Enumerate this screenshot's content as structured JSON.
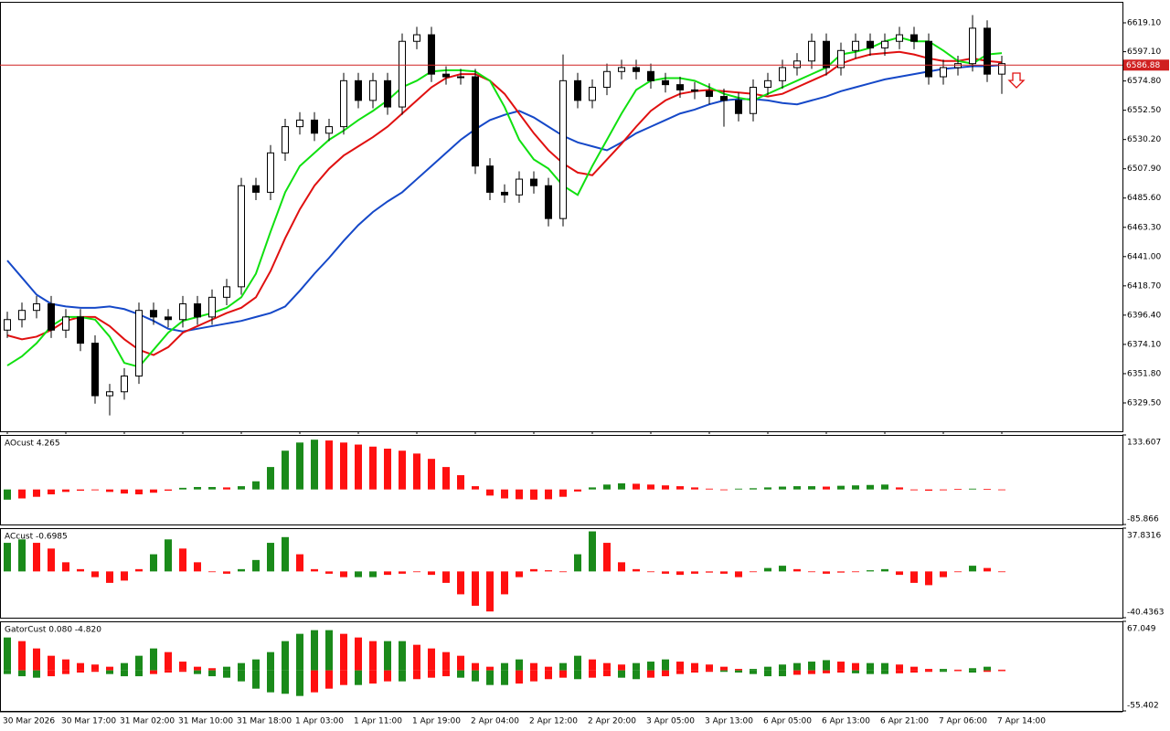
{
  "chart_data": [
    {
      "type": "candlestick",
      "x_labels": [
        "30 Mar 2026",
        "30 Mar 17:00",
        "31 Mar 02:00",
        "31 Mar 10:00",
        "31 Mar 18:00",
        "1 Apr 03:00",
        "1 Apr 11:00",
        "1 Apr 19:00",
        "2 Apr 04:00",
        "2 Apr 12:00",
        "2 Apr 20:00",
        "3 Apr 05:00",
        "3 Apr 13:00",
        "6 Apr 05:00",
        "6 Apr 13:00",
        "6 Apr 21:00",
        "7 Apr 06:00",
        "7 Apr 14:00"
      ],
      "open": [
        6385,
        6393,
        6400,
        6405,
        6385,
        6395,
        6375,
        6335,
        6338,
        6350,
        6400,
        6395,
        6393,
        6405,
        6395,
        6410,
        6418,
        6495,
        6490,
        6520,
        6540,
        6545,
        6535,
        6540,
        6575,
        6560,
        6575,
        6555,
        6605,
        6610,
        6580,
        6578,
        6578,
        6510,
        6490,
        6488,
        6500,
        6495,
        6470,
        6575,
        6560,
        6570,
        6582,
        6585,
        6582,
        6575,
        6572,
        6568,
        6567,
        6563,
        6560,
        6550,
        6570,
        6575,
        6585,
        6590,
        6605,
        6585,
        6598,
        6605,
        6600,
        6605,
        6610,
        6605,
        6578,
        6585,
        6588,
        6615,
        6580
      ],
      "high": [
        6399,
        6406,
        6411,
        6411,
        6401,
        6401,
        6381,
        6344,
        6356,
        6406,
        6406,
        6401,
        6411,
        6411,
        6416,
        6424,
        6501,
        6501,
        6526,
        6546,
        6551,
        6551,
        6546,
        6581,
        6581,
        6581,
        6581,
        6611,
        6616,
        6616,
        6586,
        6584,
        6584,
        6516,
        6496,
        6506,
        6506,
        6501,
        6595,
        6581,
        6576,
        6588,
        6591,
        6591,
        6588,
        6581,
        6578,
        6574,
        6573,
        6569,
        6566,
        6576,
        6581,
        6591,
        6596,
        6611,
        6611,
        6604,
        6611,
        6611,
        6611,
        6616,
        6616,
        6611,
        6591,
        6594,
        6625,
        6621,
        6594
      ],
      "low": [
        6379,
        6387,
        6394,
        6379,
        6379,
        6369,
        6329,
        6320,
        6332,
        6344,
        6389,
        6387,
        6387,
        6389,
        6389,
        6404,
        6412,
        6484,
        6484,
        6514,
        6534,
        6529,
        6529,
        6534,
        6554,
        6554,
        6549,
        6549,
        6599,
        6574,
        6572,
        6572,
        6504,
        6484,
        6482,
        6482,
        6489,
        6464,
        6464,
        6554,
        6554,
        6564,
        6576,
        6576,
        6569,
        6566,
        6562,
        6561,
        6557,
        6540,
        6544,
        6544,
        6564,
        6569,
        6579,
        6584,
        6579,
        6579,
        6592,
        6594,
        6594,
        6599,
        6599,
        6572,
        6572,
        6579,
        6582,
        6574,
        6565
      ],
      "close": [
        6393,
        6400,
        6405,
        6385,
        6395,
        6375,
        6335,
        6338,
        6350,
        6400,
        6395,
        6393,
        6405,
        6395,
        6410,
        6418,
        6495,
        6490,
        6520,
        6540,
        6545,
        6535,
        6540,
        6575,
        6560,
        6575,
        6555,
        6605,
        6610,
        6580,
        6578,
        6578,
        6510,
        6490,
        6488,
        6500,
        6495,
        6470,
        6575,
        6560,
        6570,
        6582,
        6585,
        6582,
        6575,
        6572,
        6568,
        6567,
        6563,
        6560,
        6550,
        6570,
        6575,
        6585,
        6590,
        6605,
        6585,
        6598,
        6605,
        6600,
        6605,
        6610,
        6605,
        6578,
        6585,
        6588,
        6615,
        6580,
        6588
      ],
      "series": [
        {
          "color": "#1548c8",
          "values": [
            6438,
            6425,
            6412,
            6405,
            6403,
            6402,
            6402,
            6403,
            6401,
            6397,
            6392,
            6386,
            6384,
            6386,
            6388,
            6390,
            6392,
            6395,
            6398,
            6403,
            6415,
            6428,
            6440,
            6453,
            6465,
            6475,
            6483,
            6490,
            6500,
            6510,
            6520,
            6530,
            6538,
            6545,
            6549,
            6552,
            6547,
            6540,
            6533,
            6528,
            6525,
            6522,
            6528,
            6535,
            6540,
            6545,
            6550,
            6553,
            6557,
            6560,
            6561,
            6561,
            6560,
            6558,
            6557,
            6560,
            6563,
            6567,
            6570,
            6573,
            6576,
            6578,
            6580,
            6582,
            6584,
            6585,
            6586,
            6586,
            6587
          ]
        },
        {
          "color": "#e01010",
          "values": [
            6381,
            6378,
            6380,
            6385,
            6392,
            6395,
            6395,
            6388,
            6378,
            6370,
            6366,
            6372,
            6383,
            6388,
            6393,
            6398,
            6402,
            6410,
            6430,
            6455,
            6477,
            6495,
            6508,
            6518,
            6525,
            6532,
            6540,
            6550,
            6560,
            6570,
            6577,
            6580,
            6580,
            6575,
            6565,
            6550,
            6535,
            6522,
            6512,
            6505,
            6503,
            6515,
            6527,
            6540,
            6552,
            6560,
            6565,
            6567,
            6568,
            6567,
            6566,
            6565,
            6563,
            6565,
            6570,
            6575,
            6580,
            6588,
            6592,
            6595,
            6596,
            6597,
            6595,
            6592,
            6590,
            6590,
            6592,
            6590,
            6589
          ]
        },
        {
          "color": "#10e010",
          "values": [
            6358,
            6365,
            6375,
            6388,
            6395,
            6395,
            6393,
            6380,
            6360,
            6357,
            6370,
            6383,
            6392,
            6395,
            6398,
            6402,
            6410,
            6428,
            6460,
            6490,
            6510,
            6520,
            6530,
            6537,
            6545,
            6552,
            6560,
            6570,
            6575,
            6582,
            6583,
            6583,
            6582,
            6575,
            6555,
            6530,
            6515,
            6508,
            6495,
            6488,
            6510,
            6530,
            6550,
            6568,
            6575,
            6577,
            6577,
            6575,
            6570,
            6565,
            6562,
            6560,
            6565,
            6570,
            6575,
            6580,
            6585,
            6595,
            6597,
            6600,
            6605,
            6608,
            6605,
            6605,
            6598,
            6590,
            6588,
            6595,
            6596
          ]
        }
      ],
      "last_price": 6586.88,
      "up_color": "#ffffff",
      "down_color": "#000000",
      "ylim": [
        6307.9,
        6635.1
      ],
      "yticks": [
        {
          "value": 6619.1,
          "label": "6619.10"
        },
        {
          "value": 6597.1,
          "label": "6597.10"
        },
        {
          "value": 6574.8,
          "label": "6574.80"
        },
        {
          "value": 6552.5,
          "label": "6552.50"
        },
        {
          "value": 6530.2,
          "label": "6530.20"
        },
        {
          "value": 6507.9,
          "label": "6507.90"
        },
        {
          "value": 6485.6,
          "label": "6485.60"
        },
        {
          "value": 6463.3,
          "label": "6463.30"
        },
        {
          "value": 6441.0,
          "label": "6441.00"
        },
        {
          "value": 6418.7,
          "label": "6418.70"
        },
        {
          "value": 6396.4,
          "label": "6396.40"
        },
        {
          "value": 6374.1,
          "label": "6374.10"
        },
        {
          "value": 6351.8,
          "label": "6351.80"
        },
        {
          "value": 6329.5,
          "label": "6329.50"
        }
      ]
    },
    {
      "type": "bar",
      "title": "AOcust 4.265",
      "up_color": "#1a8a1a",
      "down_color": "#ff1010",
      "values": [
        -25,
        -22,
        -18,
        -12,
        -6,
        -3,
        -2,
        -6,
        -10,
        -12,
        -8,
        -3,
        4,
        6,
        6,
        5,
        8,
        20,
        55,
        95,
        115,
        122,
        120,
        115,
        110,
        105,
        100,
        95,
        88,
        75,
        55,
        35,
        8,
        -15,
        -22,
        -24,
        -25,
        -24,
        -18,
        -5,
        5,
        12,
        15,
        14,
        12,
        10,
        8,
        5,
        2,
        0,
        2,
        3,
        5,
        7,
        8,
        8,
        7,
        9,
        10,
        11,
        12,
        5,
        -2,
        -3,
        -2,
        1,
        2,
        1,
        0
      ],
      "ylim": [
        -85.866,
        133.607
      ],
      "yticks": [
        133.607,
        -85.866
      ]
    },
    {
      "type": "bar",
      "title": "ACcust -0.6985",
      "up_color": "#1a8a1a",
      "down_color": "#ff1010",
      "values": [
        25,
        28,
        25,
        20,
        8,
        2,
        -5,
        -10,
        -8,
        2,
        15,
        28,
        20,
        8,
        0,
        -2,
        2,
        10,
        25,
        30,
        15,
        2,
        -2,
        -5,
        -5,
        -5,
        -3,
        -2,
        0,
        -3,
        -10,
        -20,
        -30,
        -35,
        -20,
        -5,
        2,
        1,
        0,
        15,
        35,
        25,
        8,
        2,
        0,
        -2,
        -3,
        -2,
        -1,
        -2,
        -5,
        0,
        3,
        5,
        2,
        0,
        -2,
        -1,
        0,
        1,
        2,
        -3,
        -10,
        -12,
        -5,
        0,
        5,
        3,
        0
      ],
      "ylim": [
        -40.4363,
        37.8316
      ],
      "yticks": [
        37.8316,
        -40.4363
      ]
    },
    {
      "type": "gator",
      "title": "GatorCust 0.080 -4.820",
      "up_color": "#1a8a1a",
      "down_color": "#ff1010",
      "series": [
        {
          "values": [
            45,
            40,
            30,
            20,
            15,
            10,
            8,
            5,
            10,
            20,
            30,
            25,
            12,
            5,
            3,
            5,
            10,
            15,
            25,
            40,
            50,
            55,
            55,
            50,
            45,
            40,
            40,
            40,
            35,
            30,
            25,
            20,
            10,
            5,
            10,
            15,
            10,
            5,
            10,
            20,
            15,
            10,
            8,
            10,
            12,
            15,
            12,
            10,
            8,
            5,
            2,
            2,
            5,
            8,
            10,
            12,
            14,
            12,
            10,
            10,
            10,
            8,
            5,
            2,
            2,
            1,
            3,
            5,
            1
          ]
        },
        {
          "values": [
            -5,
            -8,
            -10,
            -8,
            -5,
            -3,
            -2,
            -5,
            -8,
            -8,
            -5,
            -3,
            -2,
            -5,
            -8,
            -10,
            -15,
            -25,
            -30,
            -32,
            -35,
            -30,
            -25,
            -20,
            -20,
            -18,
            -15,
            -15,
            -12,
            -10,
            -8,
            -10,
            -15,
            -20,
            -20,
            -18,
            -15,
            -12,
            -10,
            -12,
            -10,
            -8,
            -10,
            -12,
            -10,
            -8,
            -5,
            -3,
            -2,
            -2,
            -3,
            -5,
            -8,
            -8,
            -6,
            -5,
            -4,
            -3,
            -4,
            -5,
            -5,
            -4,
            -3,
            -2,
            -2,
            -1,
            -3,
            -2,
            -1
          ]
        }
      ],
      "ylim": [
        -55.402,
        67.049
      ],
      "yticks": [
        67.049,
        -55.402
      ]
    }
  ]
}
